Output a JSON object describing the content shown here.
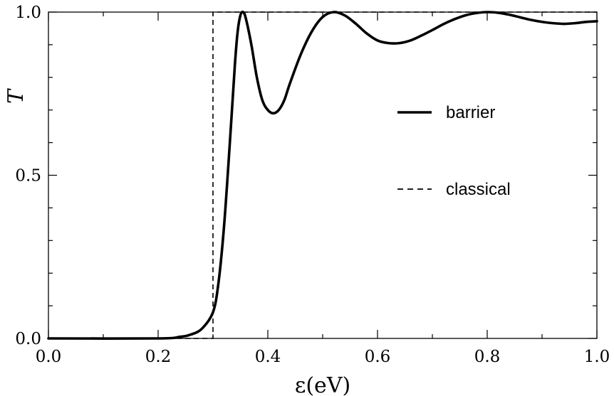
{
  "chart_data": {
    "type": "line",
    "xlabel": "ε(eV)",
    "ylabel": "T",
    "xlim": [
      0.0,
      1.0
    ],
    "ylim": [
      0.0,
      1.0
    ],
    "x_major_ticks": [
      0.0,
      0.2,
      0.4,
      0.6,
      0.8,
      1.0
    ],
    "x_tick_labels": [
      "0.0",
      "0.2",
      "0.4",
      "0.6",
      "0.8",
      "1.0"
    ],
    "x_minor_step": 0.1,
    "y_major_ticks": [
      0.0,
      0.5,
      1.0
    ],
    "y_tick_labels": [
      "0.0",
      "0.5",
      "1.0"
    ],
    "y_minor_step": 0.1,
    "grid": false,
    "legend_position": "center-right",
    "series": [
      {
        "name": "barrier",
        "style": "solid",
        "color": "#000000",
        "x": [
          0.0,
          0.2,
          0.24,
          0.26,
          0.28,
          0.3,
          0.31,
          0.32,
          0.33,
          0.34,
          0.345,
          0.35,
          0.355,
          0.36,
          0.37,
          0.38,
          0.39,
          0.4,
          0.41,
          0.42,
          0.43,
          0.44,
          0.46,
          0.48,
          0.5,
          0.52,
          0.54,
          0.56,
          0.58,
          0.6,
          0.62,
          0.64,
          0.66,
          0.68,
          0.7,
          0.72,
          0.74,
          0.76,
          0.78,
          0.8,
          0.82,
          0.84,
          0.86,
          0.88,
          0.9,
          0.92,
          0.94,
          0.96,
          0.98,
          1.0
        ],
        "y": [
          0.0,
          0.0,
          0.005,
          0.012,
          0.03,
          0.08,
          0.17,
          0.34,
          0.58,
          0.84,
          0.94,
          0.99,
          1.0,
          0.98,
          0.9,
          0.8,
          0.73,
          0.7,
          0.69,
          0.7,
          0.73,
          0.78,
          0.87,
          0.94,
          0.985,
          1.0,
          0.99,
          0.965,
          0.935,
          0.913,
          0.905,
          0.905,
          0.913,
          0.928,
          0.945,
          0.963,
          0.978,
          0.99,
          0.997,
          1.0,
          0.998,
          0.992,
          0.984,
          0.976,
          0.97,
          0.966,
          0.964,
          0.966,
          0.97,
          0.972
        ]
      },
      {
        "name": "classical",
        "style": "dashed",
        "color": "#000000",
        "x": [
          0.0,
          0.3,
          0.3,
          1.0
        ],
        "y": [
          0.0,
          0.0,
          1.0,
          1.0
        ]
      }
    ]
  }
}
